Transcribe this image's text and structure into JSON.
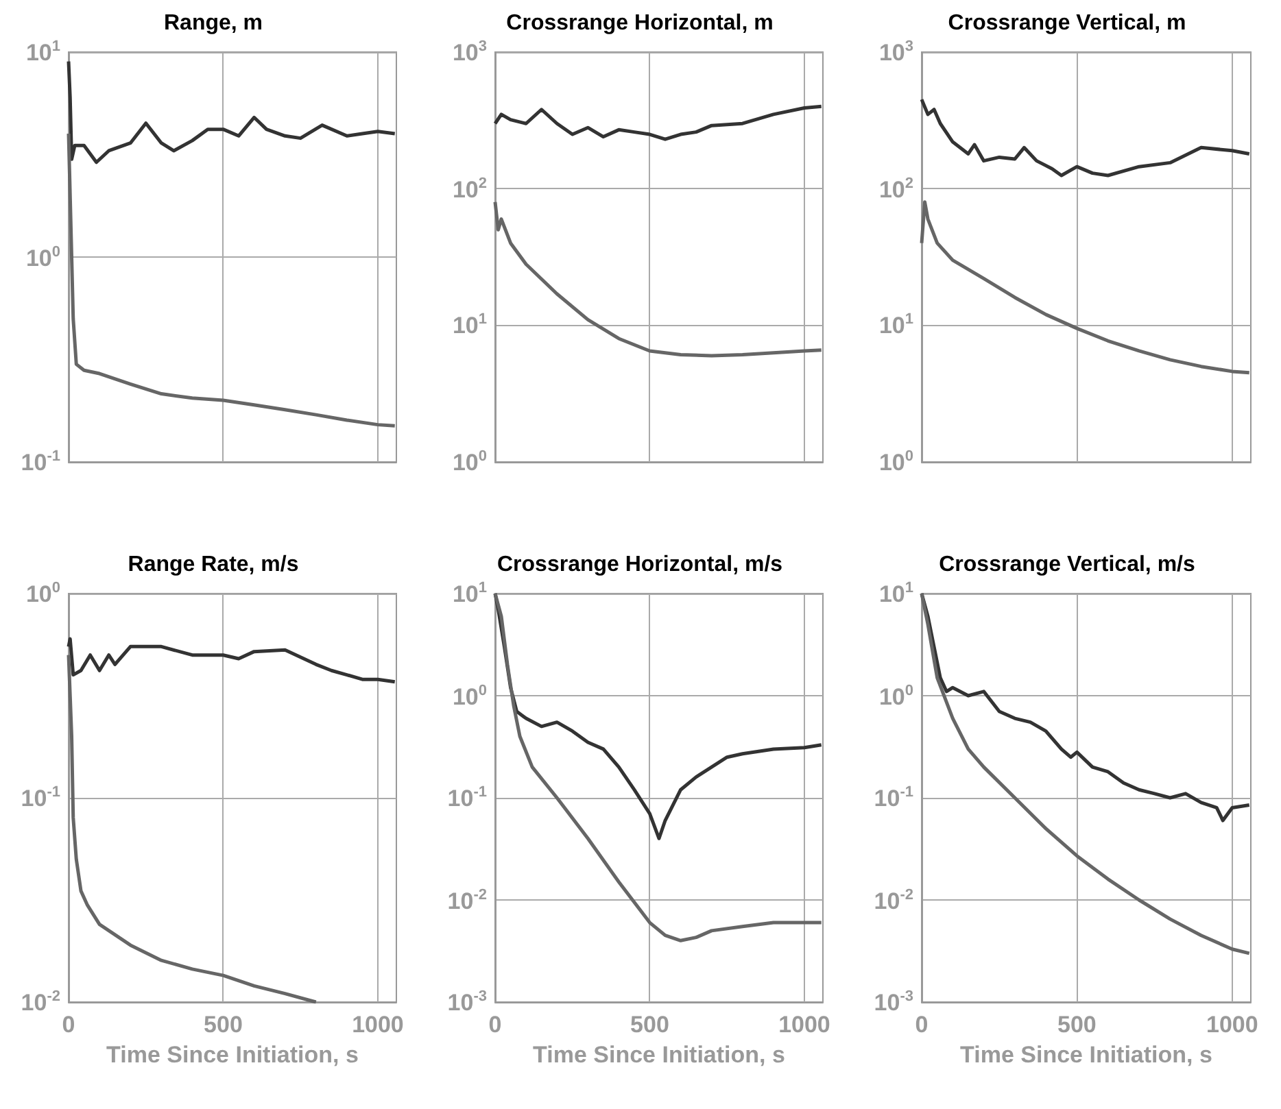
{
  "chart_data": [
    {
      "type": "line",
      "title": "Range, m",
      "log": "y",
      "grid": true,
      "marker": "none",
      "line_style": "solid",
      "tick_labels": "y",
      "xlim": [
        0,
        1060
      ],
      "xticks": [
        0,
        500,
        1000
      ],
      "ylim": [
        0.1,
        10
      ],
      "yticks": [
        {
          "value": 0.1,
          "label": "10$^{-1}$"
        },
        {
          "value": 1,
          "label": "10$^{0}$"
        },
        {
          "value": 10,
          "label": "10$^{1}$"
        }
      ],
      "series": [
        {
          "color": "#333333",
          "x": [
            0,
            5,
            10,
            20,
            50,
            90,
            130,
            200,
            250,
            300,
            340,
            400,
            450,
            500,
            550,
            600,
            640,
            700,
            750,
            820,
            900,
            950,
            1000,
            1055
          ],
          "values": [
            9,
            6,
            3,
            3.5,
            3.5,
            2.9,
            3.3,
            3.6,
            4.5,
            3.6,
            3.3,
            3.7,
            4.2,
            4.2,
            3.9,
            4.8,
            4.2,
            3.9,
            3.8,
            4.4,
            3.9,
            4.0,
            4.1,
            4.0
          ]
        },
        {
          "color": "#666666",
          "x": [
            0,
            10,
            15,
            25,
            50,
            100,
            200,
            300,
            400,
            500,
            600,
            700,
            800,
            900,
            1000,
            1055
          ],
          "values": [
            4,
            1.0,
            0.5,
            0.3,
            0.28,
            0.27,
            0.24,
            0.215,
            0.205,
            0.2,
            0.19,
            0.18,
            0.17,
            0.16,
            0.152,
            0.15
          ]
        }
      ]
    },
    {
      "type": "line",
      "title": "Crossrange Horizontal, m",
      "log": "y",
      "grid": true,
      "marker": "none",
      "line_style": "solid",
      "tick_labels": "y",
      "xlim": [
        0,
        1060
      ],
      "xticks": [
        0,
        500,
        1000
      ],
      "ylim": [
        1,
        1000
      ],
      "yticks": [
        {
          "value": 1,
          "label": "10$^{0}$"
        },
        {
          "value": 10,
          "label": "10$^{1}$"
        },
        {
          "value": 100,
          "label": "10$^{2}$"
        },
        {
          "value": 1000,
          "label": "10$^{3}$"
        }
      ],
      "series": [
        {
          "color": "#333333",
          "x": [
            0,
            20,
            50,
            100,
            150,
            200,
            250,
            300,
            350,
            400,
            450,
            500,
            550,
            600,
            650,
            700,
            800,
            900,
            1000,
            1055
          ],
          "values": [
            300,
            350,
            320,
            300,
            380,
            300,
            250,
            280,
            240,
            270,
            260,
            250,
            230,
            250,
            260,
            290,
            300,
            350,
            390,
            400
          ]
        },
        {
          "color": "#666666",
          "x": [
            0,
            10,
            20,
            50,
            100,
            200,
            300,
            400,
            500,
            600,
            700,
            800,
            900,
            1000,
            1055
          ],
          "values": [
            80,
            50,
            60,
            40,
            28,
            17,
            11,
            8,
            6.5,
            6.1,
            6,
            6.1,
            6.3,
            6.5,
            6.6
          ]
        }
      ]
    },
    {
      "type": "line",
      "title": "Crossrange Vertical, m",
      "log": "y",
      "grid": true,
      "marker": "none",
      "line_style": "solid",
      "tick_labels": "y",
      "xlim": [
        0,
        1060
      ],
      "xticks": [
        0,
        500,
        1000
      ],
      "ylim": [
        1,
        1000
      ],
      "yticks": [
        {
          "value": 1,
          "label": "10$^{0}$"
        },
        {
          "value": 10,
          "label": "10$^{1}$"
        },
        {
          "value": 100,
          "label": "10$^{2}$"
        },
        {
          "value": 1000,
          "label": "10$^{3}$"
        }
      ],
      "series": [
        {
          "color": "#333333",
          "x": [
            0,
            20,
            40,
            60,
            100,
            150,
            170,
            200,
            250,
            300,
            330,
            370,
            420,
            450,
            500,
            550,
            600,
            700,
            800,
            900,
            1000,
            1055
          ],
          "values": [
            450,
            350,
            380,
            300,
            220,
            180,
            210,
            160,
            170,
            165,
            200,
            160,
            140,
            125,
            145,
            130,
            125,
            145,
            155,
            200,
            190,
            180
          ]
        },
        {
          "color": "#666666",
          "x": [
            0,
            10,
            20,
            50,
            100,
            200,
            300,
            400,
            500,
            600,
            700,
            800,
            900,
            1000,
            1055
          ],
          "values": [
            40,
            80,
            60,
            40,
            30,
            22,
            16,
            12,
            9.5,
            7.7,
            6.5,
            5.6,
            5,
            4.6,
            4.5
          ]
        }
      ]
    },
    {
      "type": "line",
      "title": "Range Rate, m/s",
      "xlabel": "Time Since Initiation, s",
      "log": "y",
      "grid": true,
      "marker": "none",
      "line_style": "solid",
      "xlim": [
        0,
        1060
      ],
      "xticks": [
        0,
        500,
        1000
      ],
      "ylim": [
        0.01,
        1
      ],
      "yticks": [
        {
          "value": 0.01,
          "label": "10$^{-2}$"
        },
        {
          "value": 0.1,
          "label": "10$^{-1}$"
        },
        {
          "value": 1,
          "label": "10$^{0}$"
        }
      ],
      "series": [
        {
          "color": "#333333",
          "x": [
            0,
            5,
            15,
            40,
            70,
            100,
            130,
            150,
            200,
            300,
            400,
            500,
            550,
            600,
            700,
            800,
            850,
            900,
            950,
            1000,
            1055
          ],
          "values": [
            0.55,
            0.6,
            0.4,
            0.42,
            0.5,
            0.42,
            0.5,
            0.45,
            0.55,
            0.55,
            0.5,
            0.5,
            0.48,
            0.52,
            0.53,
            0.45,
            0.42,
            0.4,
            0.38,
            0.38,
            0.37
          ]
        },
        {
          "color": "#666666",
          "x": [
            0,
            10,
            15,
            25,
            40,
            60,
            100,
            200,
            300,
            400,
            500,
            600,
            700,
            800
          ],
          "values": [
            0.5,
            0.2,
            0.08,
            0.05,
            0.035,
            0.03,
            0.024,
            0.019,
            0.016,
            0.0145,
            0.0135,
            0.012,
            0.011,
            0.01
          ]
        }
      ]
    },
    {
      "type": "line",
      "title": "Crossrange Horizontal, m/s",
      "xlabel": "Time Since Initiation, s",
      "log": "y",
      "grid": true,
      "marker": "none",
      "line_style": "solid",
      "xlim": [
        0,
        1060
      ],
      "xticks": [
        0,
        500,
        1000
      ],
      "ylim": [
        0.001,
        10
      ],
      "yticks": [
        {
          "value": 0.001,
          "label": "10$^{-3}$"
        },
        {
          "value": 0.01,
          "label": "10$^{-2}$"
        },
        {
          "value": 0.1,
          "label": "10$^{-1}$"
        },
        {
          "value": 1,
          "label": "10$^{0}$"
        },
        {
          "value": 10,
          "label": "10$^{1}$"
        }
      ],
      "series": [
        {
          "color": "#333333",
          "x": [
            0,
            10,
            30,
            50,
            70,
            100,
            150,
            200,
            250,
            300,
            350,
            400,
            450,
            500,
            530,
            550,
            600,
            650,
            700,
            750,
            800,
            900,
            1000,
            1055
          ],
          "values": [
            10,
            7,
            3,
            1.2,
            0.7,
            0.6,
            0.5,
            0.55,
            0.45,
            0.35,
            0.3,
            0.2,
            0.12,
            0.07,
            0.04,
            0.06,
            0.12,
            0.16,
            0.2,
            0.25,
            0.27,
            0.3,
            0.31,
            0.33
          ]
        },
        {
          "color": "#666666",
          "x": [
            0,
            20,
            40,
            60,
            80,
            120,
            200,
            300,
            400,
            500,
            550,
            600,
            650,
            700,
            800,
            900,
            1055
          ],
          "values": [
            10,
            6,
            2,
            0.8,
            0.4,
            0.2,
            0.1,
            0.04,
            0.015,
            0.006,
            0.0045,
            0.004,
            0.0043,
            0.005,
            0.0055,
            0.006,
            0.006
          ]
        }
      ]
    },
    {
      "type": "line",
      "title": "Crossrange Vertical, m/s",
      "xlabel": "Time Since Initiation, s",
      "log": "y",
      "grid": true,
      "marker": "none",
      "line_style": "solid",
      "xlim": [
        0,
        1060
      ],
      "xticks": [
        0,
        500,
        1000
      ],
      "ylim": [
        0.001,
        10
      ],
      "yticks": [
        {
          "value": 0.001,
          "label": "10$^{-3}$"
        },
        {
          "value": 0.01,
          "label": "10$^{-2}$"
        },
        {
          "value": 0.1,
          "label": "10$^{-1}$"
        },
        {
          "value": 1,
          "label": "10$^{0}$"
        },
        {
          "value": 10,
          "label": "10$^{1}$"
        }
      ],
      "series": [
        {
          "color": "#333333",
          "x": [
            0,
            20,
            40,
            60,
            80,
            100,
            150,
            200,
            250,
            300,
            350,
            400,
            450,
            480,
            500,
            550,
            600,
            650,
            700,
            750,
            800,
            850,
            900,
            950,
            970,
            1000,
            1055
          ],
          "values": [
            10,
            6,
            3,
            1.5,
            1.1,
            1.2,
            1.0,
            1.1,
            0.7,
            0.6,
            0.55,
            0.45,
            0.3,
            0.25,
            0.28,
            0.2,
            0.18,
            0.14,
            0.12,
            0.11,
            0.1,
            0.11,
            0.09,
            0.08,
            0.06,
            0.08,
            0.085
          ]
        },
        {
          "color": "#666666",
          "x": [
            0,
            20,
            50,
            100,
            150,
            200,
            300,
            400,
            500,
            600,
            700,
            800,
            900,
            1000,
            1055
          ],
          "values": [
            10,
            5,
            1.5,
            0.6,
            0.3,
            0.2,
            0.1,
            0.05,
            0.027,
            0.016,
            0.01,
            0.0065,
            0.0045,
            0.0033,
            0.003
          ]
        }
      ]
    }
  ]
}
